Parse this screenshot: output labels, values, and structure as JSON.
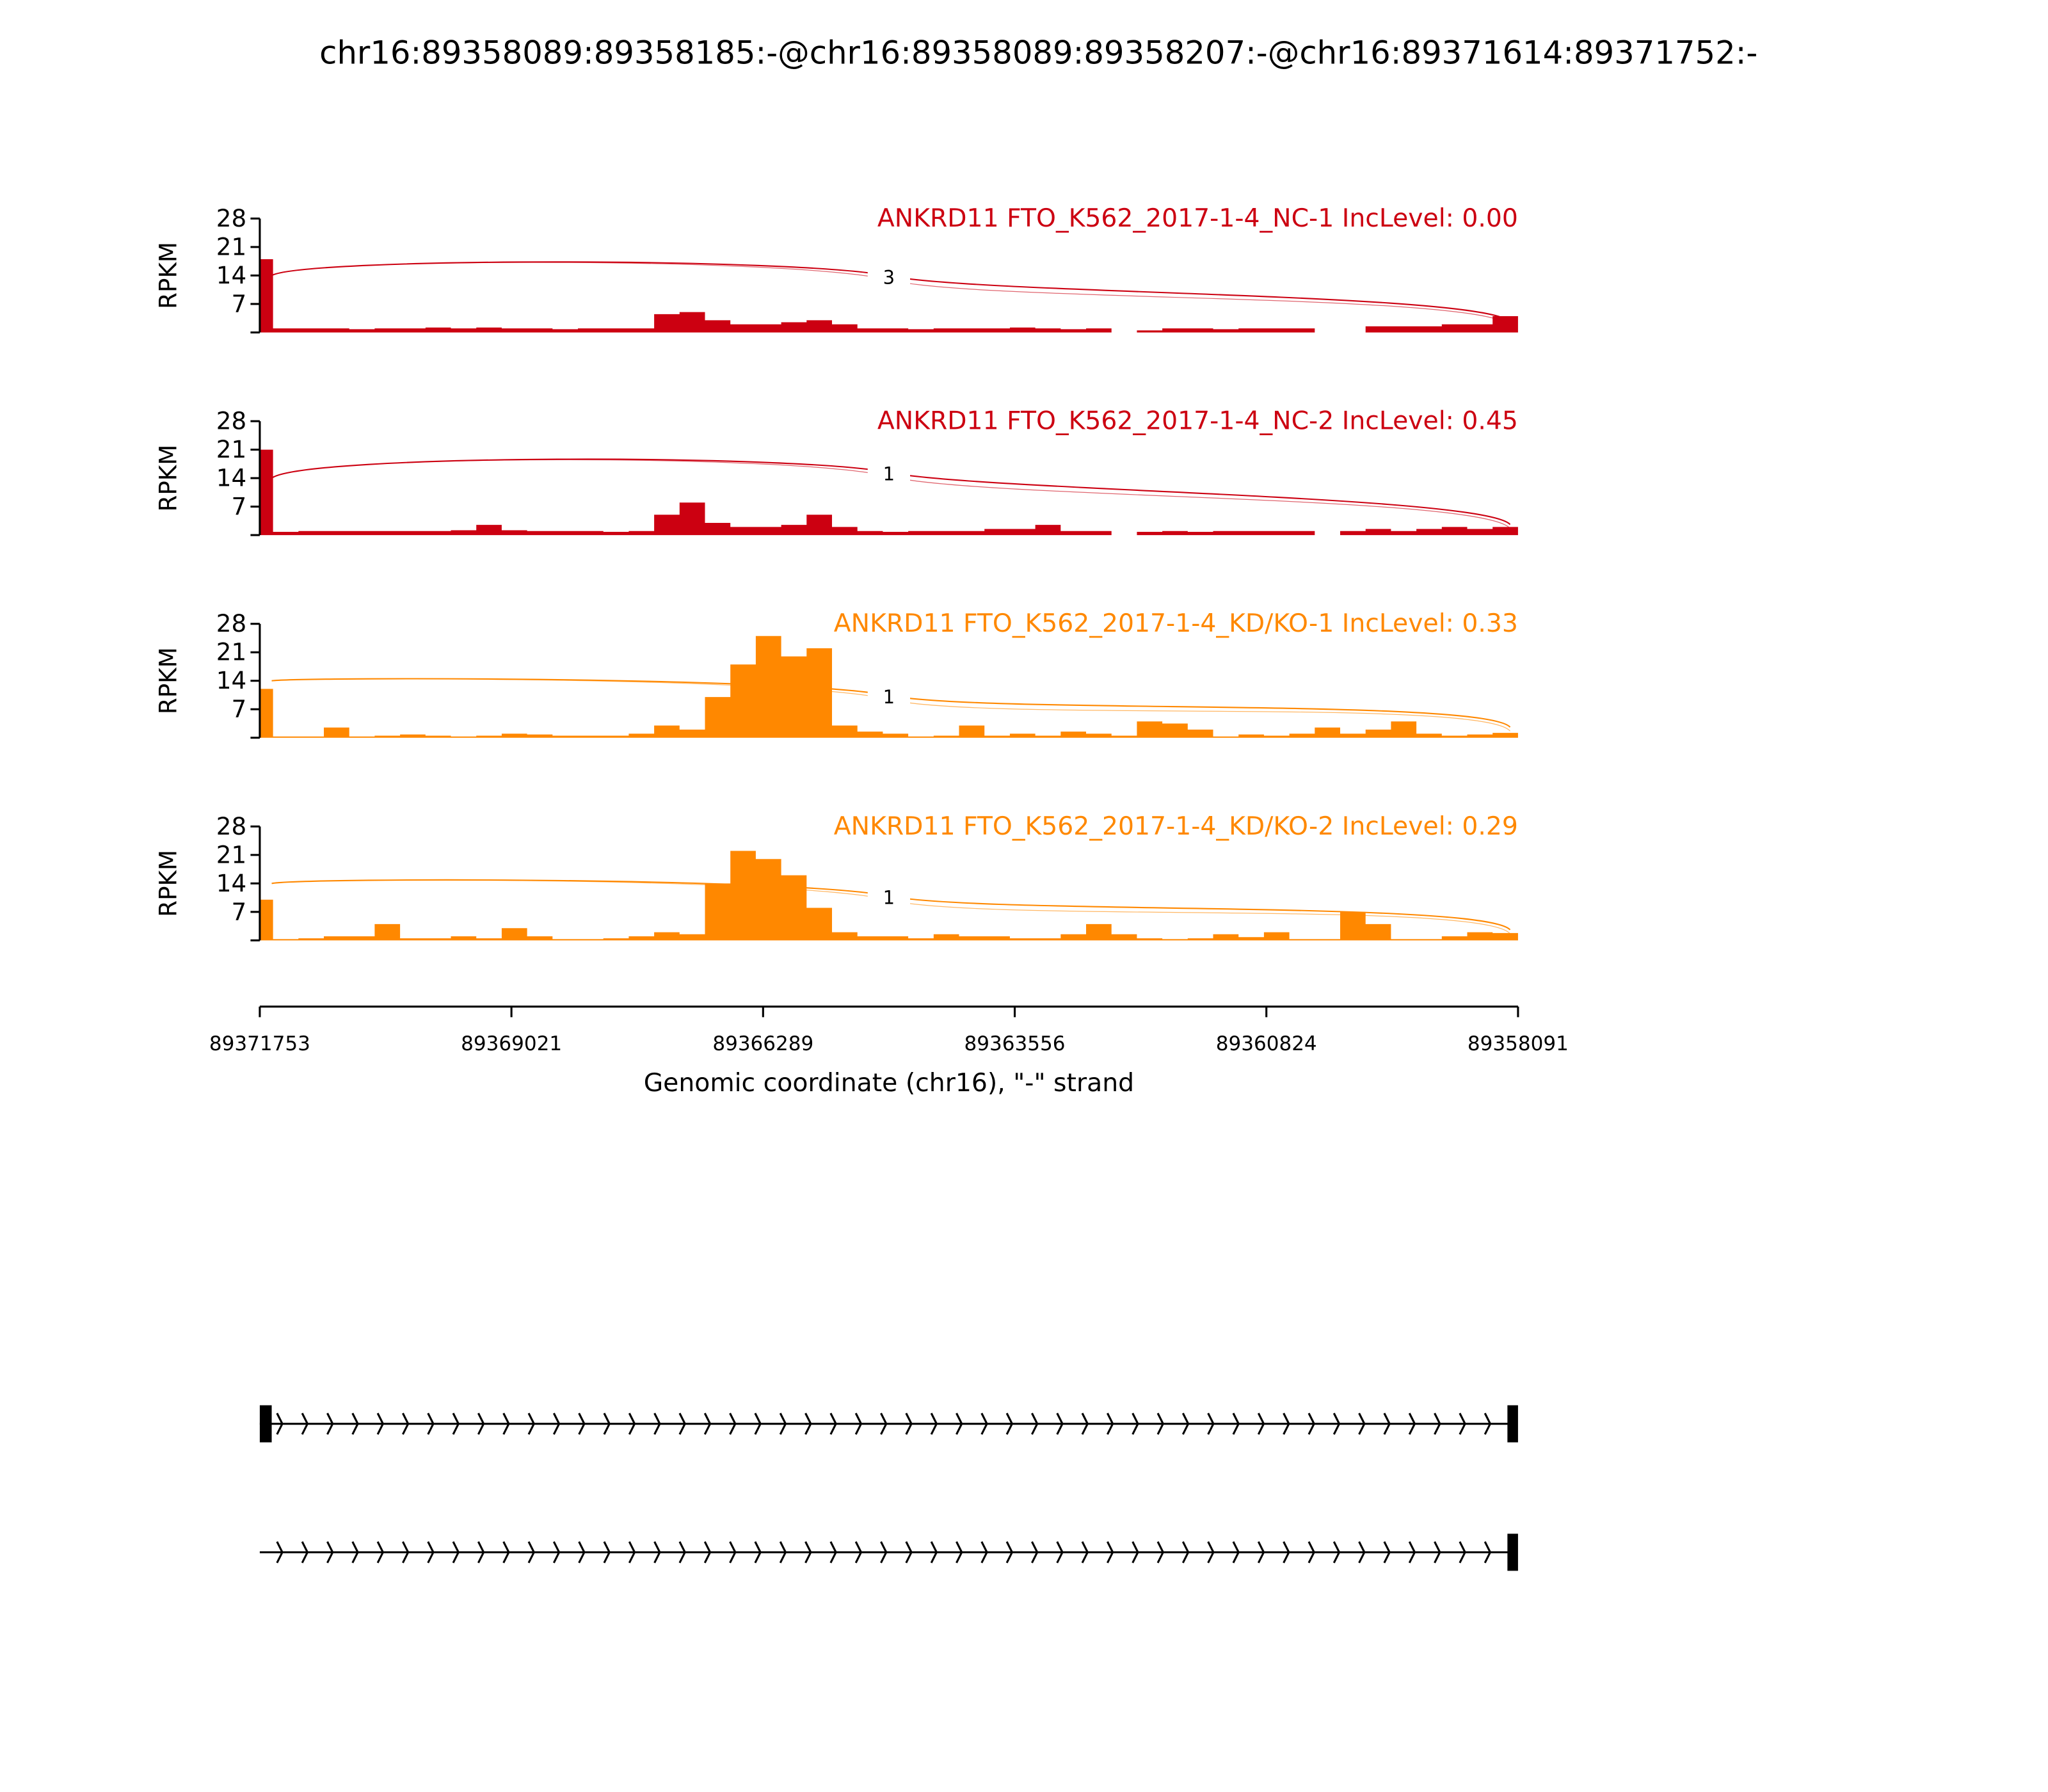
{
  "chart_data": {
    "type": "area",
    "title": "chr16:89358089:89358185:-@chr16:89358089:89358207:-@chr16:89371614:89371752:-",
    "xlabel": "Genomic coordinate (chr16), \"-\" strand",
    "ylabel": "RPKM",
    "xlim": [
      89371753,
      89358091
    ],
    "ylim": [
      0,
      28
    ],
    "yticks": [
      "7",
      "14",
      "21",
      "28"
    ],
    "xticks": [
      "89371753",
      "89369021",
      "89366289",
      "89363556",
      "89360824",
      "89358091"
    ],
    "tracks": [
      {
        "name": "ANKRD11 FTO_K562_2017-1-4_NC-1 IncLevel: 0.00",
        "color": "#cc0011",
        "junction_count": "3",
        "junction_peak": 16.5,
        "coverage": [
          18,
          1,
          1,
          1,
          0.8,
          1,
          1,
          1.2,
          1,
          1.2,
          1,
          1,
          0.8,
          1,
          1,
          1,
          4.5,
          5,
          3,
          2,
          2,
          2.5,
          3,
          2,
          1,
          1,
          0.8,
          1,
          1,
          1,
          1.2,
          1,
          0.8,
          1,
          0,
          0.5,
          1,
          1,
          0.8,
          1,
          1,
          1,
          0,
          0,
          1.5,
          1.5,
          1.5,
          2,
          2,
          4
        ]
      },
      {
        "name": "ANKRD11 FTO_K562_2017-1-4_NC-2 IncLevel: 0.45",
        "color": "#cc0011",
        "junction_count": "1",
        "junction_peak": 18,
        "coverage": [
          21,
          0.8,
          1,
          1,
          1,
          1,
          1,
          1,
          1.2,
          2.5,
          1.2,
          1,
          1,
          1,
          0.8,
          1,
          5,
          8,
          3,
          2,
          2,
          2.5,
          5,
          2,
          1,
          0.8,
          1,
          1,
          1,
          1.5,
          1.5,
          2.5,
          1,
          1,
          0,
          0.8,
          1,
          0.8,
          1,
          1,
          1,
          1,
          0,
          1,
          1.5,
          1,
          1.5,
          2,
          1.5,
          2
        ]
      },
      {
        "name": "ANKRD11 FTO_K562_2017-1-4_KD/KO-1 IncLevel: 0.33",
        "color": "#ff8800",
        "junction_count": "1",
        "junction_peak": 13,
        "coverage": [
          12,
          0.3,
          0.3,
          2.5,
          0.3,
          0.5,
          0.8,
          0.5,
          0.3,
          0.5,
          1,
          0.8,
          0.5,
          0.5,
          0.5,
          1,
          3,
          2,
          10,
          18,
          25,
          20,
          22,
          3,
          1.5,
          1,
          0.3,
          0.5,
          3,
          0.5,
          1,
          0.5,
          1.5,
          1,
          0.5,
          4,
          3.5,
          2,
          0.3,
          0.8,
          0.5,
          1,
          2.5,
          1,
          2,
          4,
          1,
          0.5,
          0.8,
          1.2
        ]
      },
      {
        "name": "ANKRD11 FTO_K562_2017-1-4_KD/KO-2 IncLevel: 0.29",
        "color": "#ff8800",
        "junction_count": "1",
        "junction_peak": 13.5,
        "coverage": [
          10,
          0.3,
          0.5,
          1,
          1,
          4,
          0.5,
          0.5,
          1,
          0.5,
          3,
          1,
          0.3,
          0.3,
          0.5,
          1,
          2,
          1.5,
          14,
          22,
          20,
          16,
          8,
          2,
          1,
          1,
          0.5,
          1.5,
          1,
          1,
          0.5,
          0.5,
          1.5,
          4,
          1.5,
          0.5,
          0.3,
          0.5,
          1.5,
          0.8,
          2,
          0.3,
          0.3,
          7,
          4,
          0.3,
          0.3,
          1,
          2,
          1.8
        ]
      }
    ],
    "isoforms": [
      {
        "exons": [
          [
            89371752,
            89371614
          ],
          [
            89358207,
            89358089
          ]
        ]
      },
      {
        "exons": [
          [
            89358185,
            89358089
          ]
        ]
      }
    ]
  }
}
